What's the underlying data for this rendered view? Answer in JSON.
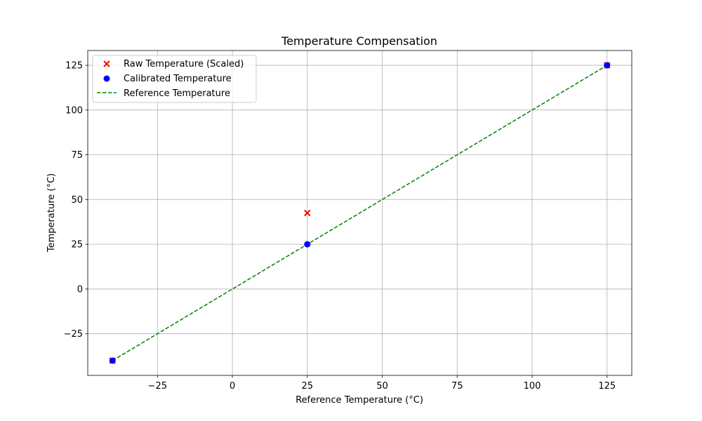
{
  "chart_data": {
    "type": "scatter",
    "title": "Temperature Compensation",
    "xlabel": "Reference Temperature (°C)",
    "ylabel": "Temperature (°C)",
    "xlim": [
      -48.25,
      133.25
    ],
    "ylim": [
      -48.25,
      133.25
    ],
    "xticks": [
      -25,
      0,
      25,
      50,
      75,
      100,
      125
    ],
    "yticks": [
      -25,
      0,
      25,
      50,
      75,
      100,
      125
    ],
    "xtick_labels": [
      "−25",
      "0",
      "25",
      "50",
      "75",
      "100",
      "125"
    ],
    "ytick_labels": [
      "−25",
      "0",
      "25",
      "50",
      "75",
      "100",
      "125"
    ],
    "grid": true,
    "legend_position": "top-left",
    "series": [
      {
        "name": "Raw Temperature (Scaled)",
        "kind": "scatter",
        "marker": "x",
        "color": "#ff0000",
        "x": [
          -40,
          25,
          125
        ],
        "y": [
          -40,
          42.5,
          125
        ]
      },
      {
        "name": "Calibrated Temperature",
        "kind": "scatter",
        "marker": "o",
        "color": "#0000ff",
        "x": [
          -40,
          25,
          125
        ],
        "y": [
          -40,
          25,
          125
        ]
      },
      {
        "name": "Reference Temperature",
        "kind": "line",
        "style": "dashed",
        "color": "#008000",
        "x": [
          -40,
          125
        ],
        "y": [
          -40,
          125
        ]
      }
    ]
  }
}
